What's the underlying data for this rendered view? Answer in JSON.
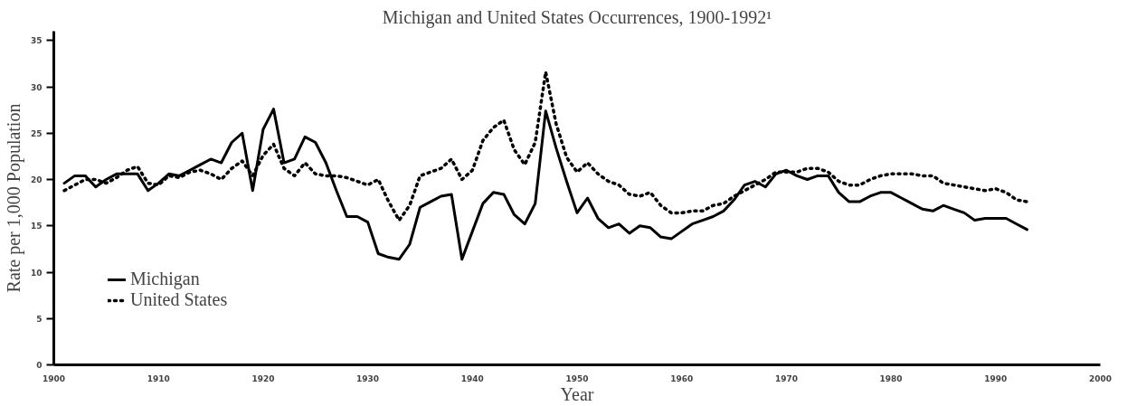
{
  "chart_data": {
    "type": "line",
    "title": "Michigan and United States Occurrences, 1900-1992¹",
    "xlabel": "Year",
    "ylabel": "Rate per 1,000 Population",
    "x": [
      1901,
      1902,
      1903,
      1904,
      1905,
      1906,
      1907,
      1908,
      1909,
      1910,
      1911,
      1912,
      1913,
      1914,
      1915,
      1916,
      1917,
      1918,
      1919,
      1920,
      1921,
      1922,
      1923,
      1924,
      1925,
      1926,
      1927,
      1928,
      1929,
      1930,
      1931,
      1932,
      1933,
      1934,
      1935,
      1936,
      1937,
      1938,
      1939,
      1940,
      1941,
      1942,
      1943,
      1944,
      1945,
      1946,
      1947,
      1948,
      1949,
      1950,
      1951,
      1952,
      1953,
      1954,
      1955,
      1956,
      1957,
      1958,
      1959,
      1960,
      1961,
      1962,
      1963,
      1964,
      1965,
      1966,
      1967,
      1968,
      1969,
      1970,
      1971,
      1972,
      1973,
      1974,
      1975,
      1976,
      1977,
      1978,
      1979,
      1980,
      1981,
      1982,
      1983,
      1984,
      1985,
      1986,
      1987,
      1988,
      1989,
      1990,
      1991,
      1992,
      1993
    ],
    "series": [
      {
        "name": "Michigan",
        "color": "#000000",
        "line_style": "solid",
        "values": [
          19.6,
          20.4,
          20.4,
          19.2,
          20.0,
          20.6,
          20.6,
          20.6,
          18.8,
          19.6,
          20.6,
          20.4,
          21.0,
          21.6,
          22.2,
          21.8,
          24.0,
          25.0,
          18.8,
          25.4,
          27.6,
          21.8,
          22.2,
          24.6,
          24.0,
          21.8,
          18.8,
          16.0,
          16.0,
          15.4,
          12.0,
          11.6,
          11.4,
          13.0,
          17.0,
          17.6,
          18.2,
          18.4,
          11.4,
          14.4,
          17.4,
          18.6,
          18.4,
          16.2,
          15.2,
          17.4,
          27.4,
          23.4,
          19.8,
          16.4,
          18.0,
          15.8,
          14.8,
          15.2,
          14.2,
          15.0,
          14.8,
          13.8,
          13.6,
          14.4,
          15.2,
          15.6,
          16.0,
          16.6,
          17.8,
          19.4,
          19.8,
          19.2,
          20.6,
          21.0,
          20.4,
          20.0,
          20.4,
          20.4,
          18.6,
          17.6,
          17.6,
          18.2,
          18.6,
          18.6,
          18.0,
          17.4,
          16.8,
          16.6,
          17.2,
          16.8,
          16.4,
          15.6,
          15.8,
          15.8,
          15.8,
          15.2,
          14.6
        ]
      },
      {
        "name": "United States",
        "color": "#000000",
        "line_style": "dotted",
        "values": [
          18.8,
          19.4,
          20.0,
          20.0,
          19.6,
          20.2,
          21.0,
          21.4,
          19.6,
          19.4,
          20.4,
          20.2,
          20.8,
          21.0,
          20.6,
          20.0,
          21.2,
          22.0,
          20.4,
          22.6,
          23.8,
          21.2,
          20.4,
          21.8,
          20.6,
          20.4,
          20.4,
          20.2,
          19.8,
          19.4,
          20.0,
          17.6,
          15.6,
          17.2,
          20.4,
          20.8,
          21.2,
          22.2,
          20.0,
          21.0,
          24.2,
          25.6,
          26.4,
          23.2,
          21.6,
          24.0,
          31.6,
          26.0,
          22.4,
          20.8,
          21.8,
          20.6,
          19.8,
          19.4,
          18.4,
          18.2,
          18.6,
          17.2,
          16.4,
          16.4,
          16.6,
          16.6,
          17.2,
          17.4,
          18.2,
          18.8,
          19.4,
          20.0,
          20.8,
          20.8,
          20.8,
          21.2,
          21.2,
          20.8,
          19.8,
          19.4,
          19.4,
          20.0,
          20.4,
          20.6,
          20.6,
          20.6,
          20.4,
          20.4,
          19.6,
          19.4,
          19.2,
          19.0,
          18.8,
          19.0,
          18.6,
          17.8,
          17.6
        ]
      }
    ],
    "xlim": [
      1900,
      2000
    ],
    "xticks": [
      1900,
      1910,
      1920,
      1930,
      1940,
      1950,
      1960,
      1970,
      1980,
      1990,
      2000
    ],
    "ylim": [
      0,
      36
    ],
    "yticks": [
      0,
      5,
      10,
      15,
      20,
      25,
      30,
      35
    ],
    "grid": false,
    "legend": "bottom left",
    "marker": "none"
  }
}
